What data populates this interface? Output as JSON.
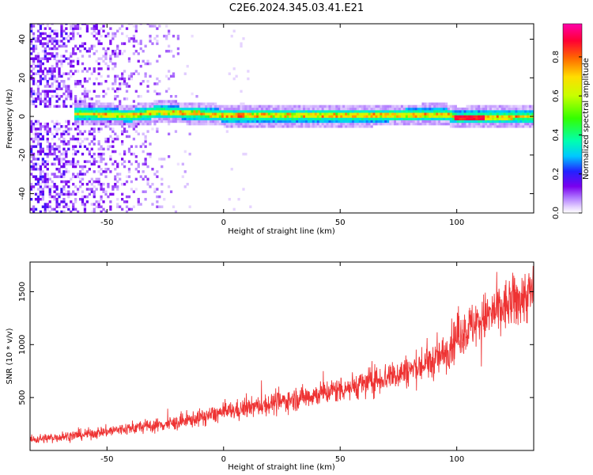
{
  "title": "C2E6.2024.345.03.41.E21",
  "chart_data": [
    {
      "type": "heatmap",
      "xlabel": "Height of straight line (km)",
      "ylabel": "Frequency (Hz)",
      "xlim": [
        -83,
        133
      ],
      "ylim": [
        -50,
        48
      ],
      "x_ticks": [
        -50,
        0,
        50,
        100
      ],
      "y_ticks": [
        -40,
        -20,
        0,
        20,
        40
      ],
      "colorbar": {
        "label": "Normalized spectral amplitude",
        "range": [
          0,
          0.97
        ],
        "ticks": [
          "0.0",
          "0.2",
          "0.4",
          "0.6",
          "0.8"
        ]
      },
      "signal_band": {
        "description_center_hz": [
          {
            "x": -62,
            "y": 1.5
          },
          {
            "x": -40,
            "y": 0.5
          },
          {
            "x": -28,
            "y": 2.5
          },
          {
            "x": -10,
            "y": 1.5
          },
          {
            "x": 0,
            "y": 0.5
          },
          {
            "x": 20,
            "y": 0.5
          },
          {
            "x": 60,
            "y": 0.5
          },
          {
            "x": 95,
            "y": 1
          },
          {
            "x": 100,
            "y": -0.5
          },
          {
            "x": 133,
            "y": 0
          }
        ],
        "noise_region_x": [
          -83,
          -20
        ]
      },
      "grid": false
    },
    {
      "type": "line",
      "xlabel": "Height of straight line (km)",
      "ylabel": "SNR (10 * v/v)",
      "xlim": [
        -83,
        133
      ],
      "ylim": [
        0,
        1780
      ],
      "x_ticks": [
        -50,
        0,
        50,
        100
      ],
      "y_ticks": [
        500,
        1000,
        1500
      ],
      "series": [
        {
          "color": "#ee3333",
          "trend_x": [
            -83,
            -60,
            -40,
            -20,
            0,
            20,
            40,
            60,
            80,
            90,
            95,
            100,
            110,
            120,
            133
          ],
          "trend_y": [
            100,
            150,
            210,
            260,
            360,
            440,
            530,
            630,
            760,
            840,
            920,
            1080,
            1230,
            1350,
            1500
          ]
        }
      ],
      "grid": false
    }
  ]
}
